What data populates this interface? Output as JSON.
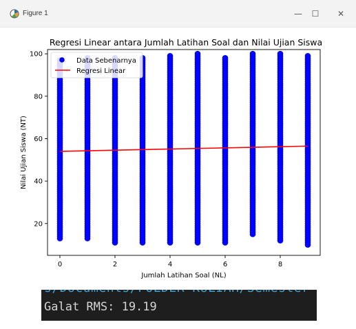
{
  "window": {
    "title": "Figure 1",
    "minimize_glyph": "—",
    "maximize_glyph": "☐",
    "close_glyph": "✕"
  },
  "chart_data": {
    "type": "scatter",
    "title": "Regresi Linear antara Jumlah Latihan Soal dan Nilai Ujian Siswa",
    "xlabel": "Jumlah Latihan Soal (NL)",
    "ylabel": "Nilai Ujian Siswa (NT)",
    "xlim": [
      -0.45,
      9.45
    ],
    "ylim": [
      5,
      102
    ],
    "xticks": [
      0,
      2,
      4,
      6,
      8
    ],
    "yticks": [
      20,
      40,
      60,
      80,
      100
    ],
    "grid": false,
    "legend_position": "top-left",
    "series": [
      {
        "name": "Data Sebenarnya",
        "kind": "scatter",
        "color": "#0000ff",
        "x": [
          0,
          1,
          2,
          3,
          4,
          5,
          6,
          7,
          8,
          9
        ],
        "y_min": [
          13,
          13,
          11,
          11,
          11,
          11,
          11,
          15,
          12,
          10
        ],
        "y_max": [
          97,
          98,
          98,
          98,
          99,
          100,
          98,
          100,
          100,
          99
        ]
      },
      {
        "name": "Regresi Linear",
        "kind": "line",
        "color": "#ff0000",
        "x": [
          0,
          9
        ],
        "y": [
          54,
          56.5
        ]
      }
    ]
  },
  "terminal": {
    "previous_line": "s/Documents/FOLDER KULIAH/Semester",
    "output": "Galat RMS: 19.19",
    "text_color": "#d4d4d4",
    "background": "#1e1e1e"
  }
}
